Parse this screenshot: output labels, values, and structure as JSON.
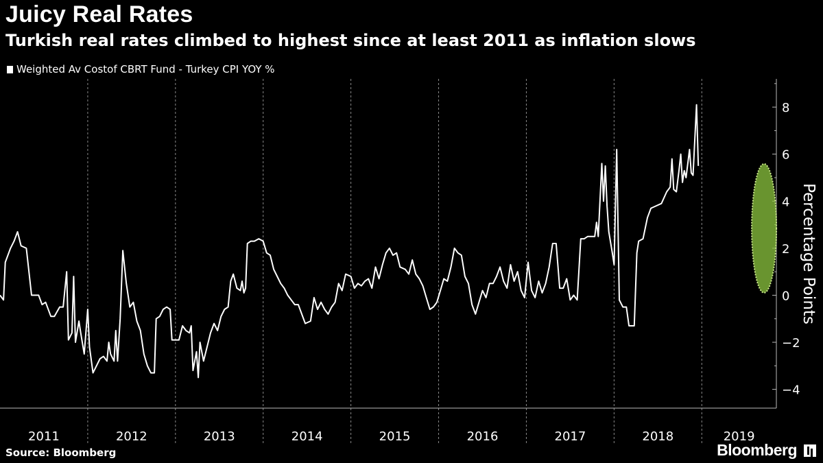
{
  "chart_data": {
    "type": "line",
    "title": "Juicy Real Rates",
    "subtitle": "Turkish real rates climbed to highest since at least 2011 as inflation slows",
    "ylabel": "Percentage Points",
    "xlabel": "",
    "ylim": [
      -4.8,
      9.2
    ],
    "xlim": [
      2011.0,
      2019.85
    ],
    "yticks": [
      -4,
      -2,
      0,
      2,
      4,
      6,
      8
    ],
    "year_labels": [
      "2011",
      "2012",
      "2013",
      "2014",
      "2015",
      "2016",
      "2017",
      "2018",
      "2019"
    ],
    "grid": "vertical dashed at year boundaries",
    "legend_position": "top-left",
    "line_color": "#ffffff",
    "highlight": {
      "shape": "ellipse",
      "color": "#8cc63f",
      "x": 2019.71,
      "y": 2.7
    },
    "series": [
      {
        "name": "Weighted Av Costof CBRT Fund - Turkey CPI YOY %",
        "points": [
          [
            2011.0,
            0.0
          ],
          [
            2011.04,
            -0.2
          ],
          [
            2011.06,
            1.4
          ],
          [
            2011.12,
            2.0
          ],
          [
            2011.16,
            2.3
          ],
          [
            2011.2,
            2.7
          ],
          [
            2011.24,
            2.1
          ],
          [
            2011.3,
            2.0
          ],
          [
            2011.36,
            0.0
          ],
          [
            2011.44,
            0.0
          ],
          [
            2011.48,
            -0.4
          ],
          [
            2011.52,
            -0.3
          ],
          [
            2011.58,
            -0.9
          ],
          [
            2011.62,
            -0.9
          ],
          [
            2011.68,
            -0.5
          ],
          [
            2011.72,
            -0.5
          ],
          [
            2011.76,
            1.0
          ],
          [
            2011.78,
            -1.9
          ],
          [
            2011.82,
            -1.6
          ],
          [
            2011.84,
            0.8
          ],
          [
            2011.86,
            -2.0
          ],
          [
            2011.9,
            -1.1
          ],
          [
            2011.92,
            -1.6
          ],
          [
            2011.96,
            -2.5
          ],
          [
            2012.0,
            -0.6
          ],
          [
            2012.02,
            -2.2
          ],
          [
            2012.06,
            -3.3
          ],
          [
            2012.1,
            -3.0
          ],
          [
            2012.14,
            -2.7
          ],
          [
            2012.18,
            -2.6
          ],
          [
            2012.22,
            -2.8
          ],
          [
            2012.24,
            -2.0
          ],
          [
            2012.26,
            -2.5
          ],
          [
            2012.3,
            -2.8
          ],
          [
            2012.32,
            -1.5
          ],
          [
            2012.34,
            -2.8
          ],
          [
            2012.37,
            -1.0
          ],
          [
            2012.4,
            1.9
          ],
          [
            2012.44,
            0.5
          ],
          [
            2012.48,
            -0.5
          ],
          [
            2012.52,
            -0.3
          ],
          [
            2012.56,
            -1.1
          ],
          [
            2012.6,
            -1.5
          ],
          [
            2012.64,
            -2.5
          ],
          [
            2012.68,
            -3.0
          ],
          [
            2012.72,
            -3.3
          ],
          [
            2012.76,
            -3.3
          ],
          [
            2012.78,
            -1.0
          ],
          [
            2012.82,
            -0.9
          ],
          [
            2012.86,
            -0.6
          ],
          [
            2012.9,
            -0.5
          ],
          [
            2012.94,
            -0.6
          ],
          [
            2012.96,
            -1.9
          ],
          [
            2013.04,
            -1.9
          ],
          [
            2013.08,
            -1.3
          ],
          [
            2013.12,
            -1.5
          ],
          [
            2013.16,
            -1.6
          ],
          [
            2013.18,
            -1.3
          ],
          [
            2013.2,
            -3.2
          ],
          [
            2013.24,
            -2.4
          ],
          [
            2013.26,
            -3.5
          ],
          [
            2013.28,
            -2.0
          ],
          [
            2013.32,
            -2.8
          ],
          [
            2013.36,
            -2.2
          ],
          [
            2013.4,
            -1.6
          ],
          [
            2013.44,
            -1.2
          ],
          [
            2013.48,
            -1.5
          ],
          [
            2013.52,
            -0.9
          ],
          [
            2013.56,
            -0.6
          ],
          [
            2013.6,
            -0.5
          ],
          [
            2013.63,
            0.6
          ],
          [
            2013.66,
            0.9
          ],
          [
            2013.7,
            0.3
          ],
          [
            2013.74,
            0.2
          ],
          [
            2013.76,
            0.6
          ],
          [
            2013.78,
            0.1
          ],
          [
            2013.8,
            0.3
          ],
          [
            2013.82,
            2.2
          ],
          [
            2013.86,
            2.3
          ],
          [
            2013.9,
            2.3
          ],
          [
            2013.95,
            2.4
          ],
          [
            2014.0,
            2.3
          ],
          [
            2014.04,
            1.8
          ],
          [
            2014.08,
            1.7
          ],
          [
            2014.12,
            1.1
          ],
          [
            2014.16,
            0.8
          ],
          [
            2014.2,
            0.5
          ],
          [
            2014.24,
            0.3
          ],
          [
            2014.28,
            0.0
          ],
          [
            2014.32,
            -0.2
          ],
          [
            2014.36,
            -0.4
          ],
          [
            2014.4,
            -0.4
          ],
          [
            2014.44,
            -0.8
          ],
          [
            2014.48,
            -1.2
          ],
          [
            2014.54,
            -1.1
          ],
          [
            2014.58,
            -0.1
          ],
          [
            2014.62,
            -0.6
          ],
          [
            2014.66,
            -0.3
          ],
          [
            2014.7,
            -0.6
          ],
          [
            2014.74,
            -0.8
          ],
          [
            2014.78,
            -0.5
          ],
          [
            2014.82,
            -0.3
          ],
          [
            2014.86,
            0.5
          ],
          [
            2014.9,
            0.2
          ],
          [
            2014.94,
            0.9
          ],
          [
            2015.0,
            0.8
          ],
          [
            2015.04,
            0.3
          ],
          [
            2015.08,
            0.5
          ],
          [
            2015.12,
            0.4
          ],
          [
            2015.16,
            0.6
          ],
          [
            2015.2,
            0.7
          ],
          [
            2015.24,
            0.3
          ],
          [
            2015.28,
            1.2
          ],
          [
            2015.32,
            0.7
          ],
          [
            2015.36,
            1.3
          ],
          [
            2015.4,
            1.8
          ],
          [
            2015.44,
            2.0
          ],
          [
            2015.48,
            1.7
          ],
          [
            2015.52,
            1.8
          ],
          [
            2015.56,
            1.2
          ],
          [
            2015.62,
            1.1
          ],
          [
            2015.66,
            0.9
          ],
          [
            2015.7,
            1.5
          ],
          [
            2015.74,
            0.9
          ],
          [
            2015.78,
            0.7
          ],
          [
            2015.82,
            0.4
          ],
          [
            2015.86,
            -0.1
          ],
          [
            2015.9,
            -0.6
          ],
          [
            2015.94,
            -0.5
          ],
          [
            2015.98,
            -0.3
          ],
          [
            2016.02,
            0.2
          ],
          [
            2016.06,
            0.7
          ],
          [
            2016.1,
            0.6
          ],
          [
            2016.14,
            1.2
          ],
          [
            2016.18,
            2.0
          ],
          [
            2016.22,
            1.8
          ],
          [
            2016.26,
            1.7
          ],
          [
            2016.3,
            0.8
          ],
          [
            2016.34,
            0.5
          ],
          [
            2016.38,
            -0.4
          ],
          [
            2016.42,
            -0.8
          ],
          [
            2016.46,
            -0.3
          ],
          [
            2016.5,
            0.2
          ],
          [
            2016.54,
            -0.1
          ],
          [
            2016.58,
            0.5
          ],
          [
            2016.62,
            0.5
          ],
          [
            2016.66,
            0.8
          ],
          [
            2016.7,
            1.2
          ],
          [
            2016.74,
            0.6
          ],
          [
            2016.78,
            0.3
          ],
          [
            2016.82,
            1.3
          ],
          [
            2016.86,
            0.6
          ],
          [
            2016.9,
            1.0
          ],
          [
            2016.94,
            0.2
          ],
          [
            2016.98,
            -0.1
          ],
          [
            2017.02,
            1.4
          ],
          [
            2017.06,
            0.2
          ],
          [
            2017.1,
            -0.1
          ],
          [
            2017.14,
            0.6
          ],
          [
            2017.18,
            0.1
          ],
          [
            2017.22,
            0.5
          ],
          [
            2017.26,
            1.2
          ],
          [
            2017.3,
            2.2
          ],
          [
            2017.34,
            2.2
          ],
          [
            2017.38,
            0.3
          ],
          [
            2017.42,
            0.3
          ],
          [
            2017.46,
            0.7
          ],
          [
            2017.5,
            -0.2
          ],
          [
            2017.54,
            0.0
          ],
          [
            2017.58,
            -0.2
          ],
          [
            2017.62,
            2.4
          ],
          [
            2017.66,
            2.4
          ],
          [
            2017.7,
            2.5
          ],
          [
            2017.74,
            2.5
          ],
          [
            2017.78,
            2.5
          ],
          [
            2017.8,
            3.1
          ],
          [
            2017.82,
            2.5
          ],
          [
            2017.86,
            5.6
          ],
          [
            2017.88,
            4.0
          ],
          [
            2017.9,
            5.5
          ],
          [
            2017.92,
            3.8
          ],
          [
            2017.94,
            2.7
          ],
          [
            2017.98,
            1.8
          ],
          [
            2018.0,
            1.3
          ],
          [
            2018.03,
            6.2
          ],
          [
            2018.06,
            -0.2
          ],
          [
            2018.1,
            -0.5
          ],
          [
            2018.14,
            -0.5
          ],
          [
            2018.17,
            -1.3
          ],
          [
            2018.23,
            -1.3
          ],
          [
            2018.26,
            1.8
          ],
          [
            2018.28,
            2.3
          ],
          [
            2018.33,
            2.4
          ],
          [
            2018.38,
            3.3
          ],
          [
            2018.42,
            3.7
          ],
          [
            2018.48,
            3.8
          ],
          [
            2018.54,
            3.9
          ],
          [
            2018.6,
            4.4
          ],
          [
            2018.64,
            4.6
          ],
          [
            2018.66,
            5.8
          ],
          [
            2018.68,
            4.5
          ],
          [
            2018.71,
            4.4
          ],
          [
            2018.74,
            5.3
          ],
          [
            2018.76,
            6.0
          ],
          [
            2018.78,
            4.8
          ],
          [
            2018.8,
            5.3
          ],
          [
            2018.82,
            5.0
          ],
          [
            2018.86,
            6.2
          ],
          [
            2018.88,
            5.2
          ],
          [
            2018.9,
            5.1
          ],
          [
            2018.94,
            8.1
          ],
          [
            2018.96,
            5.5
          ]
        ]
      }
    ]
  },
  "source": "Source: Bloomberg",
  "brand": "Bloomberg"
}
